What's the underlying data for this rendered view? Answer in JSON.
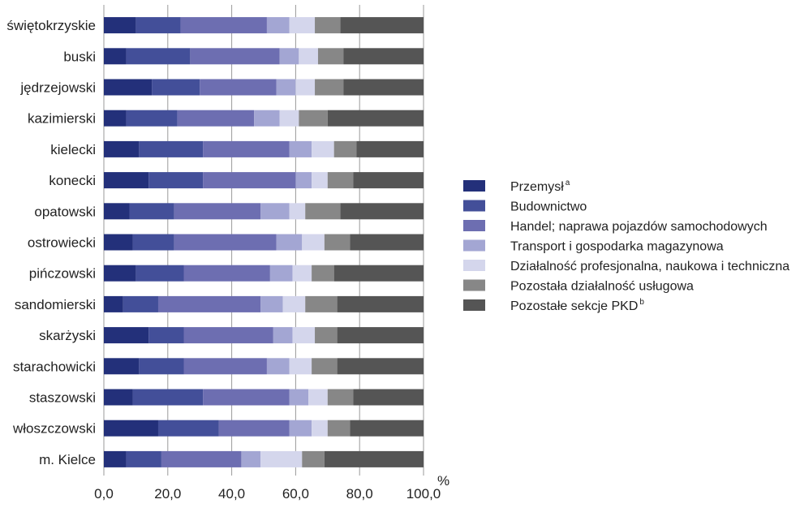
{
  "chart_data": {
    "type": "bar",
    "orientation": "horizontal",
    "stacked": true,
    "unit_label": "%",
    "xlim": [
      0,
      100
    ],
    "x_ticks": [
      "0,0",
      "20,0",
      "40,0",
      "60,0",
      "80,0",
      "100,0"
    ],
    "grid": "vertical",
    "legend_position": "right",
    "categories": [
      "świętokrzyskie",
      "buski",
      "jędrzejowski",
      "kazimierski",
      "kielecki",
      "konecki",
      "opatowski",
      "ostrowiecki",
      "pińczowski",
      "sandomierski",
      "skarżyski",
      "starachowicki",
      "staszowski",
      "włoszczowski",
      "m. Kielce"
    ],
    "series": [
      {
        "name": "Przemysł",
        "sup": "a",
        "color": "#23307a",
        "values": [
          10,
          7,
          15,
          7,
          11,
          14,
          8,
          9,
          10,
          6,
          14,
          11,
          9,
          17,
          7
        ]
      },
      {
        "name": "Budownictwo",
        "color": "#434f99",
        "values": [
          14,
          20,
          15,
          16,
          20,
          17,
          14,
          13,
          15,
          11,
          11,
          14,
          22,
          19,
          11
        ]
      },
      {
        "name": "Handel; naprawa pojazdów samochodowych",
        "color": "#6d6eb1",
        "values": [
          27,
          28,
          24,
          24,
          27,
          29,
          27,
          32,
          27,
          32,
          28,
          26,
          27,
          22,
          25
        ]
      },
      {
        "name": "Transport i gospodarka magazynowa",
        "color": "#a3a6d3",
        "values": [
          7,
          6,
          6,
          8,
          7,
          5,
          9,
          8,
          7,
          7,
          6,
          7,
          6,
          7,
          6
        ]
      },
      {
        "name": "Działalność profesjonalna, naukowa i techniczna",
        "color": "#d4d6ec",
        "values": [
          8,
          6,
          6,
          6,
          7,
          5,
          5,
          7,
          6,
          7,
          7,
          7,
          6,
          5,
          13
        ]
      },
      {
        "name": "Pozostała działalność usługowa",
        "color": "#878787",
        "values": [
          8,
          8,
          9,
          9,
          7,
          8,
          11,
          8,
          7,
          10,
          7,
          8,
          8,
          7,
          7
        ]
      },
      {
        "name": "Pozostałe sekcje PKD",
        "sup": "b",
        "color": "#555555",
        "values": [
          26,
          25,
          25,
          30,
          21,
          22,
          26,
          23,
          28,
          27,
          27,
          27,
          22,
          23,
          31
        ]
      }
    ]
  }
}
